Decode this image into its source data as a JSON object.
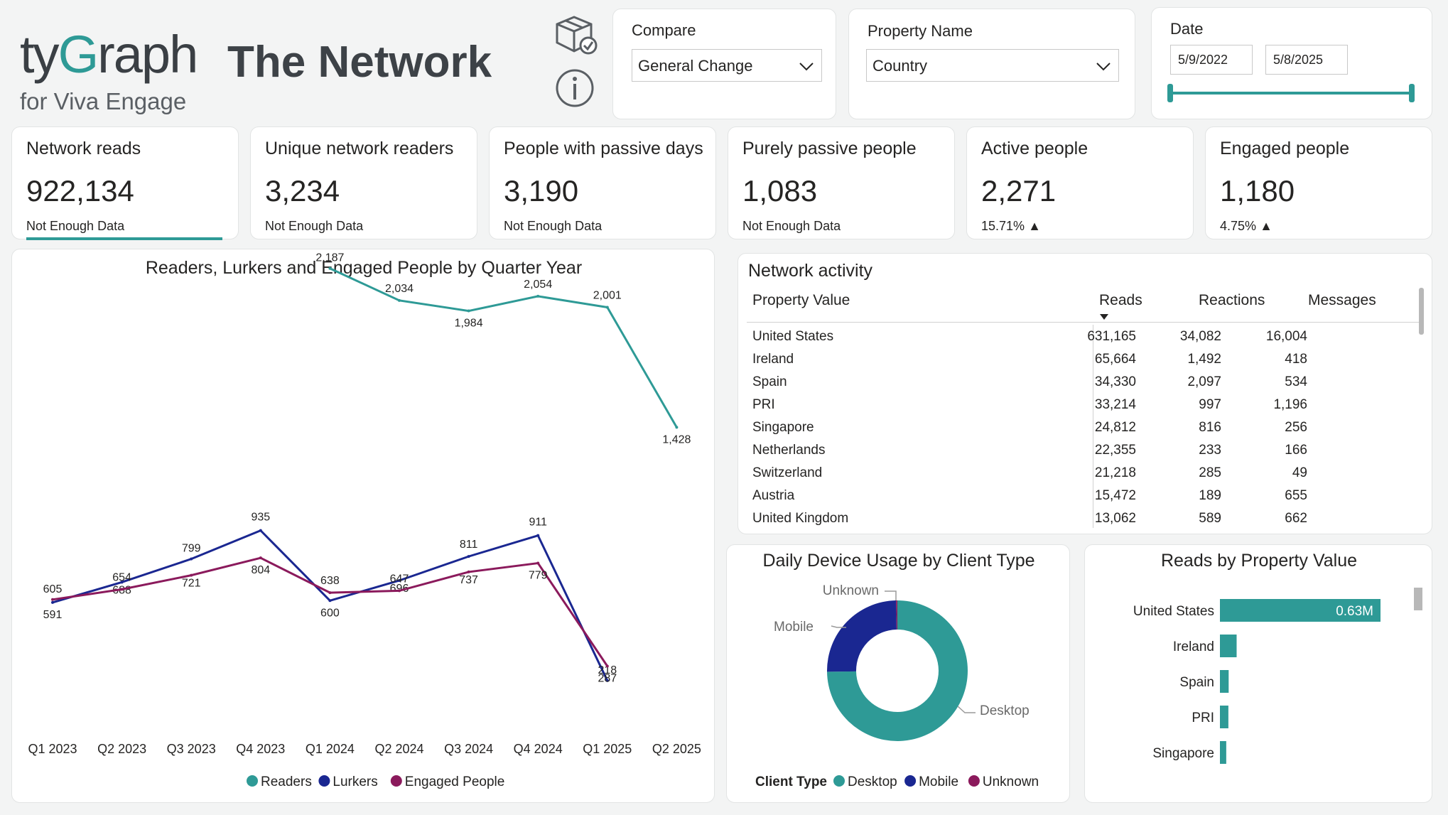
{
  "header": {
    "logo_main_a": "ty",
    "logo_main_b": "G",
    "logo_main_c": "raph",
    "logo_sub": "for Viva Engage",
    "title": "The Network",
    "icons": [
      "package-check-icon",
      "info-icon"
    ]
  },
  "slicers": {
    "compare": {
      "label": "Compare",
      "value": "General Change"
    },
    "property": {
      "label": "Property Name",
      "value": "Country"
    },
    "date": {
      "label": "Date",
      "start": "5/9/2022",
      "end": "5/8/2025",
      "range_fraction": [
        0,
        1
      ]
    }
  },
  "kpis": [
    {
      "title": "Network reads",
      "value": "922,134",
      "sub": "Not Enough Data",
      "selected": true
    },
    {
      "title": "Unique network readers",
      "value": "3,234",
      "sub": "Not Enough Data"
    },
    {
      "title": "People with passive days",
      "value": "3,190",
      "sub": "Not Enough Data"
    },
    {
      "title": "Purely passive people",
      "value": "1,083",
      "sub": "Not Enough Data"
    },
    {
      "title": "Active people",
      "value": "2,271",
      "sub": "15.71%",
      "trend": "up"
    },
    {
      "title": "Engaged people",
      "value": "1,180",
      "sub": "4.75%",
      "trend": "up"
    }
  ],
  "colors": {
    "readers": "#2e9a96",
    "lurkers": "#1a2791",
    "engaged": "#8b1a5c",
    "accent": "#2e9a96"
  },
  "line_chart": {
    "title": "Readers, Lurkers and Engaged People by Quarter Year",
    "legend": [
      "Readers",
      "Lurkers",
      "Engaged People"
    ]
  },
  "chart_data": [
    {
      "type": "line",
      "title": "Readers, Lurkers and Engaged People by Quarter Year",
      "categories": [
        "Q1 2023",
        "Q2 2023",
        "Q3 2023",
        "Q4 2023",
        "Q1 2024",
        "Q2 2024",
        "Q3 2024",
        "Q4 2024",
        "Q1 2025",
        "Q2 2025"
      ],
      "series": [
        {
          "name": "Readers",
          "values": [
            null,
            null,
            null,
            null,
            2187,
            2034,
            1984,
            2054,
            2001,
            1428
          ]
        },
        {
          "name": "Lurkers",
          "values": [
            591,
            688,
            799,
            935,
            600,
            696,
            811,
            911,
            218,
            null
          ]
        },
        {
          "name": "Engaged People",
          "values": [
            605,
            654,
            721,
            804,
            638,
            647,
            737,
            779,
            287,
            null
          ]
        }
      ],
      "legend_position": "bottom"
    },
    {
      "type": "pie",
      "title": "Daily Device Usage by Client Type",
      "legend_title": "Client Type",
      "categories": [
        "Desktop",
        "Mobile",
        "Unknown"
      ],
      "values": [
        75,
        25,
        0.3
      ],
      "donut": true
    },
    {
      "type": "bar",
      "orientation": "horizontal",
      "title": "Reads by Property Value",
      "categories": [
        "United States",
        "Ireland",
        "Spain",
        "PRI",
        "Singapore"
      ],
      "values": [
        631165,
        65664,
        34330,
        33214,
        24812
      ],
      "data_labels": [
        "0.63M",
        "",
        "",
        "",
        ""
      ]
    }
  ],
  "network_activity": {
    "title": "Network activity",
    "columns": [
      "Property Value",
      "Reads",
      "Reactions",
      "Messages"
    ],
    "sort_column": "Reads",
    "rows": [
      [
        "United States",
        "631,165",
        "34,082",
        "16,004"
      ],
      [
        "Ireland",
        "65,664",
        "1,492",
        "418"
      ],
      [
        "Spain",
        "34,330",
        "2,097",
        "534"
      ],
      [
        "PRI",
        "33,214",
        "997",
        "1,196"
      ],
      [
        "Singapore",
        "24,812",
        "816",
        "256"
      ],
      [
        "Netherlands",
        "22,355",
        "233",
        "166"
      ],
      [
        "Switzerland",
        "21,218",
        "285",
        "49"
      ],
      [
        "Austria",
        "15,472",
        "189",
        "655"
      ],
      [
        "United Kingdom",
        "13,062",
        "589",
        "662"
      ]
    ]
  }
}
